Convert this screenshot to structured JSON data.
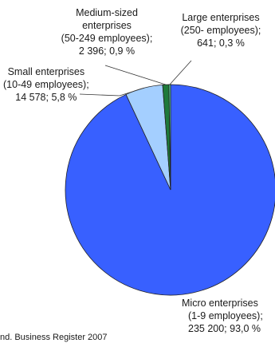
{
  "chart_data": {
    "type": "pie",
    "slices": [
      {
        "name": "Micro enterprises",
        "lines": [
          "Micro enterprises",
          "(1-9 employees);",
          "235 200; 93,0 %"
        ],
        "value": 235200,
        "percent": 93.0,
        "color": "#3860ff"
      },
      {
        "name": "Small enterprises",
        "lines": [
          "Small enterprises",
          "(10-49 employees);",
          "14 578; 5,8 %"
        ],
        "value": 14578,
        "percent": 5.8,
        "color": "#a4cfff"
      },
      {
        "name": "Medium-sized enterprises",
        "lines": [
          "Medium-sized",
          "enterprises",
          "(50-249 employees);",
          "2 396; 0,9 %"
        ],
        "value": 2396,
        "percent": 0.9,
        "color": "#1e7a3a"
      },
      {
        "name": "Large enterprises",
        "lines": [
          "Large enterprises",
          "(250- employees);",
          "641; 0,3 %"
        ],
        "value": 641,
        "percent": 0.3,
        "color": "#5fd9a0"
      }
    ]
  },
  "source": "nd. Business Register 2007"
}
